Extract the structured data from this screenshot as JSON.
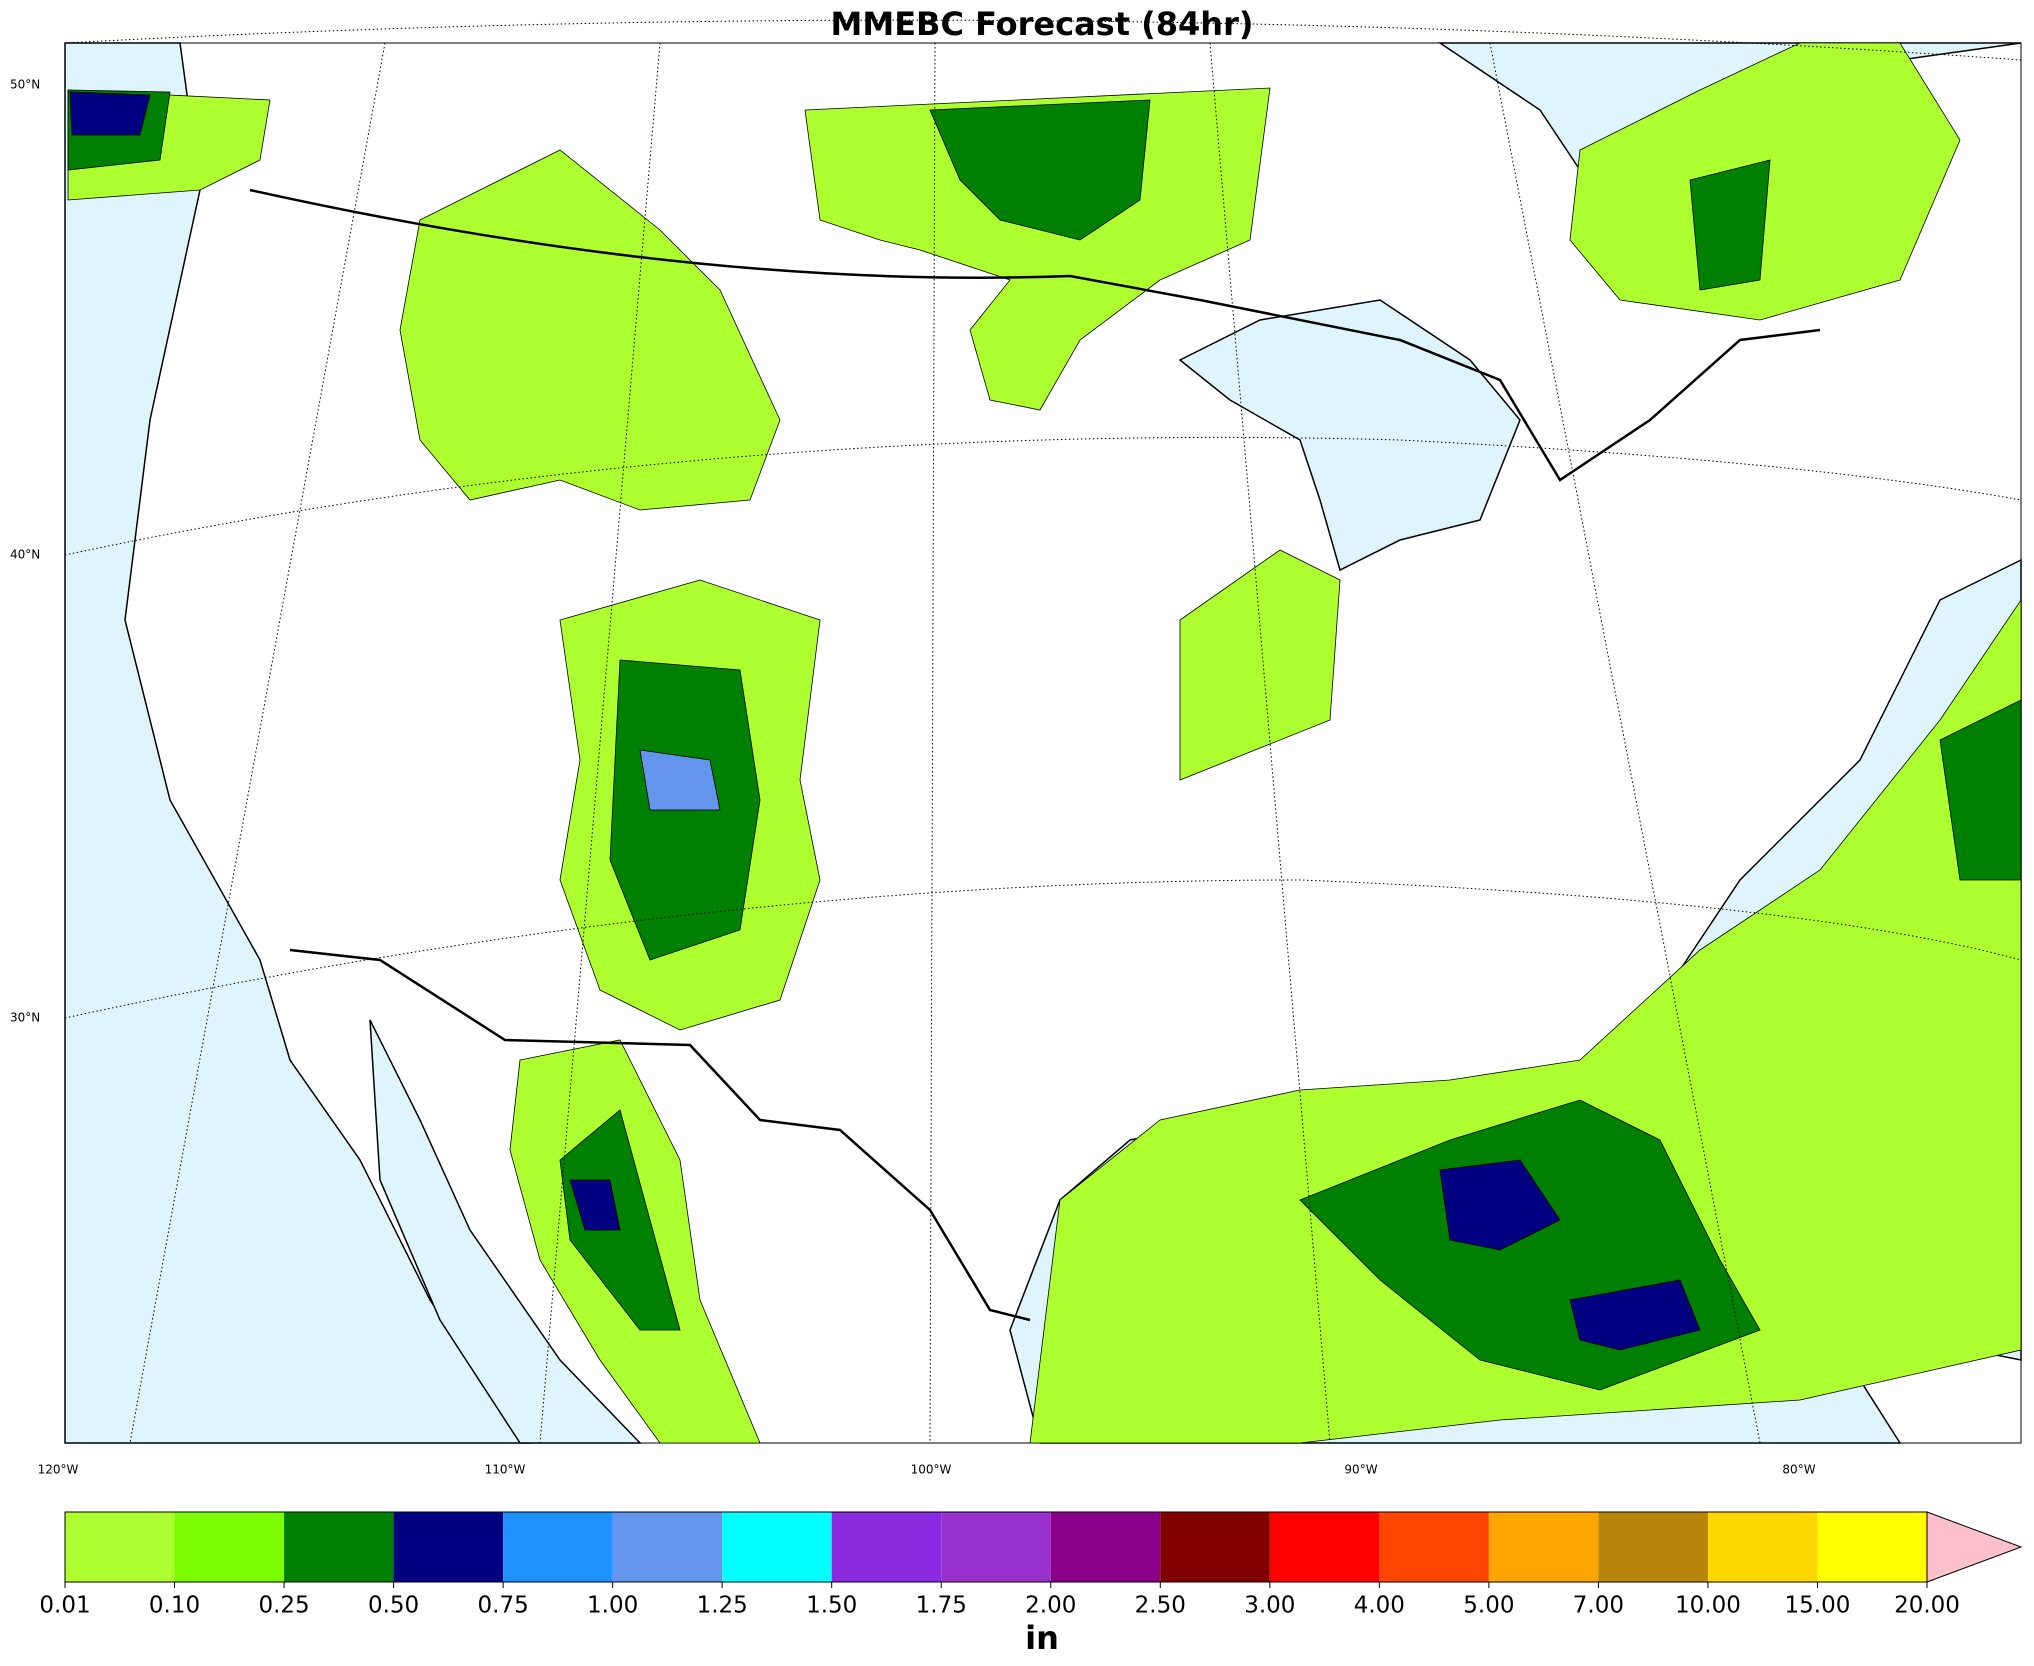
{
  "title": "MMEBC Forecast (84hr)",
  "lat_labels": [
    "50°N",
    "40°N",
    "30°N"
  ],
  "lon_labels": [
    "120°W",
    "110°W",
    "100°W",
    "90°W",
    "80°W"
  ],
  "colorbar": {
    "unit": "in",
    "levels": [
      {
        "value": 0.01,
        "label": "0.01"
      },
      {
        "value": 0.1,
        "label": "0.10"
      },
      {
        "value": 0.25,
        "label": "0.25"
      },
      {
        "value": 0.5,
        "label": "0.50"
      },
      {
        "value": 0.75,
        "label": "0.75"
      },
      {
        "value": 1,
        "label": "1.00"
      },
      {
        "value": 1.25,
        "label": "1.25"
      },
      {
        "value": 1.5,
        "label": "1.50"
      },
      {
        "value": 1.75,
        "label": "1.75"
      },
      {
        "value": 2,
        "label": "2.00"
      },
      {
        "value": 2.5,
        "label": "2.50"
      },
      {
        "value": 3,
        "label": "3.00"
      },
      {
        "value": 4,
        "label": "4.00"
      },
      {
        "value": 5,
        "label": "5.00"
      },
      {
        "value": 7,
        "label": "7.00"
      },
      {
        "value": 10,
        "label": "10.00"
      },
      {
        "value": 15,
        "label": "15.00"
      },
      {
        "value": 20,
        "label": "20.00"
      }
    ],
    "colors": [
      "#adff2f",
      "#7cfc00",
      "#008000",
      "#000080",
      "#1e90ff",
      "#6495ed",
      "#00ffff",
      "#8a2be2",
      "#9932cc",
      "#8b008b",
      "#800000",
      "#ff0000",
      "#ff4500",
      "#ffa500",
      "#b8860b",
      "#ffd700",
      "#ffff00"
    ],
    "extend_color": "#ffc0cb"
  }
}
